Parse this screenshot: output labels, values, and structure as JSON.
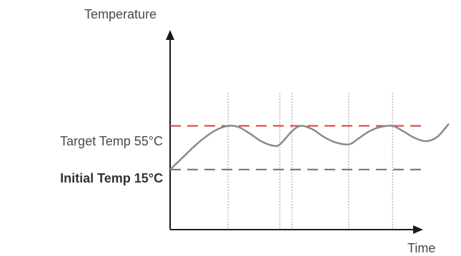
{
  "chart_data": {
    "type": "line",
    "xlabel": "Time",
    "ylabel": "Temperature",
    "grid": false,
    "reference_lines": [
      {
        "label": "Target Temp 55°C",
        "value": 55,
        "color": "#e03a3a",
        "style": "dashed"
      },
      {
        "label": "Initial Temp 15°C",
        "value": 15,
        "color": "#6e6e6e",
        "style": "dashed"
      }
    ],
    "markers_x": [
      10.2,
      19.3,
      21.4,
      31.4,
      39.1
    ],
    "series": [
      {
        "color": "#8a8a8a",
        "x": [
          0,
          2,
          4,
          6,
          8,
          10.2,
          12,
          14,
          16,
          18,
          19.3,
          21.4,
          23,
          25,
          27,
          29,
          31.4,
          33,
          35,
          37,
          39.1,
          41,
          43,
          45,
          47,
          49
        ],
        "y": [
          15,
          25,
          35,
          44,
          51,
          55,
          54,
          48,
          41,
          37,
          38,
          50,
          55,
          52,
          45,
          40,
          38,
          43,
          50,
          54,
          55,
          50,
          44,
          41,
          45,
          57
        ]
      }
    ],
    "xlim": [
      0,
      49
    ],
    "ylim": [
      -40,
      135
    ]
  },
  "colors": {
    "axis": "#1a1a1a",
    "curve": "#8a8a8a",
    "target": "#e03a3a",
    "initial": "#6e6e6e",
    "guide": "#9a9a9a"
  }
}
